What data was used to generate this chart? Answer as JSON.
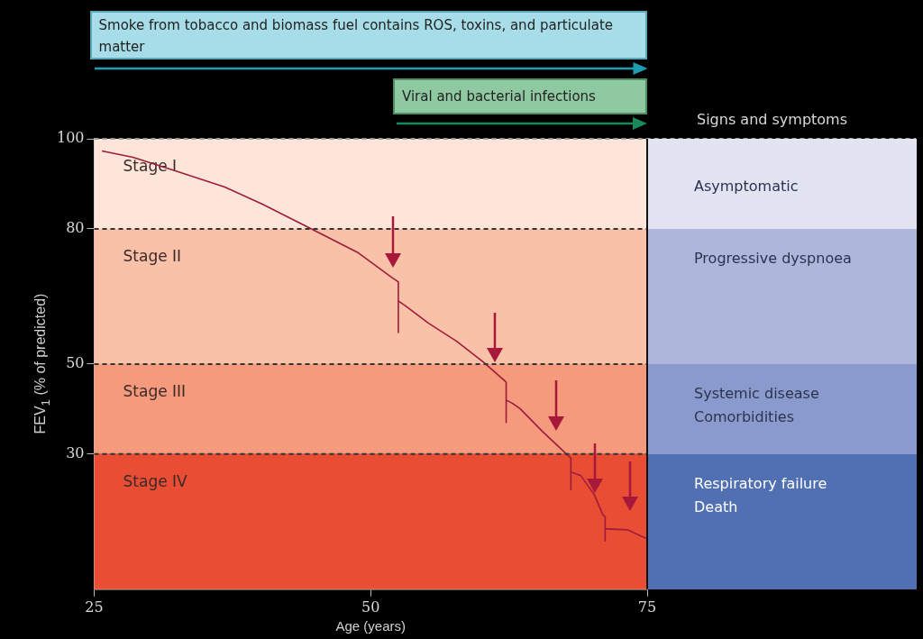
{
  "chart_data": {
    "type": "line",
    "xlabel": "Age (years)",
    "ylabel": "FEV$_{1}$ (% of predicted)",
    "xlim": [
      25,
      75
    ],
    "ylim": [
      0,
      100
    ],
    "xticks": [
      25,
      50,
      75
    ],
    "yticks": [
      30,
      50,
      80,
      100
    ],
    "grid": false,
    "legend": false,
    "marker": "none",
    "line_style": "solid",
    "series": [
      {
        "color": "#9e1c3a",
        "x": [
          25.7,
          28.5,
          32.2,
          36.8,
          40.2,
          44.8,
          48.8,
          51.8,
          52.5,
          52.5,
          52.5,
          53.2,
          55.2,
          57.8,
          60.2,
          62.2,
          62.25,
          62.25,
          62.25,
          62.8,
          63.5,
          65.5,
          68.1,
          68.1,
          68.1,
          69,
          70.2,
          71,
          71.2,
          71.2,
          71.2,
          71.5,
          73.2,
          75
        ],
        "values": [
          97.3,
          95.9,
          93,
          89.3,
          85.5,
          79.8,
          74.8,
          69.4,
          68.2,
          57,
          64,
          62.8,
          59.1,
          55,
          50.4,
          46.1,
          45.9,
          37,
          42,
          41.3,
          40.1,
          35.1,
          29.1,
          22.1,
          26,
          25.2,
          21.1,
          16.5,
          16.1,
          10.7,
          13.4,
          13.4,
          13.2,
          11.2
        ]
      }
    ],
    "bands": [
      {
        "axis": "y",
        "from": 80,
        "to": 100,
        "label": "Stage I",
        "color": "#fde5da"
      },
      {
        "axis": "y",
        "from": 50,
        "to": 80,
        "label": "Stage II",
        "color": "#f9c1a8"
      },
      {
        "axis": "y",
        "from": 30,
        "to": 50,
        "label": "Stage III",
        "color": "#f59a7c"
      },
      {
        "axis": "y",
        "from": 0,
        "to": 30,
        "label": "Stage IV",
        "color": "#e94e34"
      }
    ],
    "ref_lines": [
      {
        "axis": "y",
        "value": 100,
        "color": "#999999",
        "line_style": "dashed"
      },
      {
        "axis": "y",
        "value": 80,
        "color": "#333333",
        "line_style": "dashed"
      },
      {
        "axis": "y",
        "value": 50,
        "color": "#333333",
        "line_style": "dashed"
      },
      {
        "axis": "y",
        "value": 30,
        "color": "#333333",
        "line_style": "dashed"
      }
    ],
    "annotations": [
      "Smoke from tobacco and biomass fuel contains ROS, toxins, and particulate matter",
      "Viral and bacterial infections",
      "Signs and symptoms",
      "Asymptomatic",
      "Progressive dyspnoea",
      "Systemic disease\nComorbidities",
      "Respiratory failure\nDeath"
    ]
  }
}
